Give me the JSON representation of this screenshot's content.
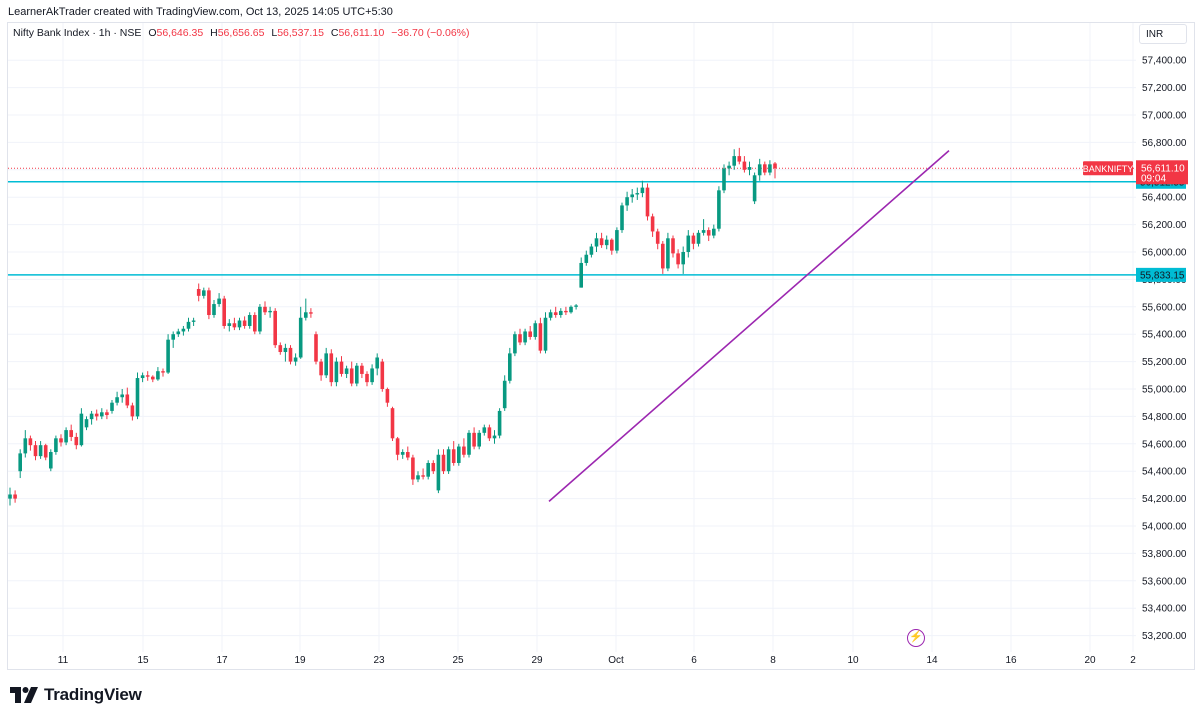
{
  "header": {
    "creator_text": "LearnerAkTrader created with TradingView.com, Oct 13, 2025 14:05 UTC+5:30"
  },
  "legend": {
    "symbol_text": "Nifty Bank Index · 1h · NSE",
    "open_label": "O",
    "open": "56,646.35",
    "high_label": "H",
    "high": "56,656.65",
    "low_label": "L",
    "low": "56,537.15",
    "close_label": "C",
    "close": "56,611.10",
    "change": "−36.70 (−0.06%)"
  },
  "currency": "INR",
  "footer": {
    "brand": "TradingView"
  },
  "colors": {
    "up": "#089981",
    "down": "#f23645",
    "hline": "#00bcd4",
    "trendline": "#9c27b0",
    "grid": "#f0f3fa",
    "axis_text": "#131722"
  },
  "chart_data": {
    "type": "candlestick",
    "title": "",
    "ylim": [
      53050,
      57550
    ],
    "y_ticks": [
      "57,400.00",
      "57,200.00",
      "57,000.00",
      "56,800.00",
      "56,600.00",
      "56,400.00",
      "56,200.00",
      "56,000.00",
      "55,800.00",
      "55,600.00",
      "55,400.00",
      "55,200.00",
      "55,000.00",
      "54,800.00",
      "54,600.00",
      "54,400.00",
      "54,200.00",
      "54,000.00",
      "53,800.00",
      "53,600.00",
      "53,400.00",
      "53,200.00"
    ],
    "x_ticks": [
      "11",
      "15",
      "17",
      "19",
      "23",
      "25",
      "29",
      "Oct",
      "6",
      "8",
      "10",
      "14",
      "16",
      "20",
      "2"
    ],
    "current_price": {
      "symbol": "BANKNIFTY",
      "price": "56,611.10",
      "countdown": "09:04",
      "value": 56611.1
    },
    "horizontal_lines": [
      {
        "value": 56512.55,
        "label": "56,512.55"
      },
      {
        "value": 55833.15,
        "label": "55,833.15"
      }
    ],
    "trendline": {
      "start": {
        "date": "Sep 30",
        "value": 54180
      },
      "end": {
        "date": "Oct 14",
        "value": 56740
      }
    },
    "candles": [
      {
        "o": 54200,
        "h": 54280,
        "l": 54150,
        "c": 54230
      },
      {
        "o": 54230,
        "h": 54260,
        "l": 54170,
        "c": 54200
      },
      {
        "o": 54400,
        "h": 54560,
        "l": 54350,
        "c": 54530
      },
      {
        "o": 54530,
        "h": 54700,
        "l": 54500,
        "c": 54640
      },
      {
        "o": 54640,
        "h": 54660,
        "l": 54550,
        "c": 54590
      },
      {
        "o": 54590,
        "h": 54620,
        "l": 54480,
        "c": 54510
      },
      {
        "o": 54510,
        "h": 54620,
        "l": 54490,
        "c": 54590
      },
      {
        "o": 54590,
        "h": 54600,
        "l": 54480,
        "c": 54500
      },
      {
        "o": 54420,
        "h": 54560,
        "l": 54400,
        "c": 54540
      },
      {
        "o": 54540,
        "h": 54660,
        "l": 54520,
        "c": 54640
      },
      {
        "o": 54640,
        "h": 54670,
        "l": 54580,
        "c": 54610
      },
      {
        "o": 54610,
        "h": 54720,
        "l": 54590,
        "c": 54700
      },
      {
        "o": 54700,
        "h": 54740,
        "l": 54620,
        "c": 54650
      },
      {
        "o": 54650,
        "h": 54680,
        "l": 54560,
        "c": 54590
      },
      {
        "o": 54590,
        "h": 54860,
        "l": 54580,
        "c": 54820
      },
      {
        "o": 54720,
        "h": 54800,
        "l": 54700,
        "c": 54780
      },
      {
        "o": 54780,
        "h": 54840,
        "l": 54740,
        "c": 54820
      },
      {
        "o": 54820,
        "h": 54850,
        "l": 54770,
        "c": 54800
      },
      {
        "o": 54800,
        "h": 54860,
        "l": 54780,
        "c": 54830
      },
      {
        "o": 54830,
        "h": 54850,
        "l": 54780,
        "c": 54810
      },
      {
        "o": 54840,
        "h": 54920,
        "l": 54820,
        "c": 54900
      },
      {
        "o": 54900,
        "h": 54980,
        "l": 54880,
        "c": 54940
      },
      {
        "o": 54940,
        "h": 55000,
        "l": 54900,
        "c": 54960
      },
      {
        "o": 54960,
        "h": 55010,
        "l": 54860,
        "c": 54880
      },
      {
        "o": 54880,
        "h": 54900,
        "l": 54770,
        "c": 54800
      },
      {
        "o": 54800,
        "h": 55120,
        "l": 54780,
        "c": 55080
      },
      {
        "o": 55080,
        "h": 55120,
        "l": 55050,
        "c": 55100
      },
      {
        "o": 55100,
        "h": 55130,
        "l": 55060,
        "c": 55090
      },
      {
        "o": 55090,
        "h": 55100,
        "l": 55050,
        "c": 55070
      },
      {
        "o": 55070,
        "h": 55160,
        "l": 55060,
        "c": 55130
      },
      {
        "o": 55130,
        "h": 55150,
        "l": 55090,
        "c": 55120
      },
      {
        "o": 55120,
        "h": 55400,
        "l": 55110,
        "c": 55360
      },
      {
        "o": 55360,
        "h": 55420,
        "l": 55300,
        "c": 55400
      },
      {
        "o": 55400,
        "h": 55440,
        "l": 55380,
        "c": 55420
      },
      {
        "o": 55420,
        "h": 55460,
        "l": 55390,
        "c": 55440
      },
      {
        "o": 55440,
        "h": 55520,
        "l": 55420,
        "c": 55490
      },
      {
        "o": 55490,
        "h": 55520,
        "l": 55460,
        "c": 55500
      },
      {
        "o": 55730,
        "h": 55770,
        "l": 55640,
        "c": 55680
      },
      {
        "o": 55680,
        "h": 55740,
        "l": 55660,
        "c": 55720
      },
      {
        "o": 55720,
        "h": 55740,
        "l": 55510,
        "c": 55540
      },
      {
        "o": 55540,
        "h": 55650,
        "l": 55520,
        "c": 55620
      },
      {
        "o": 55620,
        "h": 55700,
        "l": 55600,
        "c": 55660
      },
      {
        "o": 55660,
        "h": 55680,
        "l": 55440,
        "c": 55460
      },
      {
        "o": 55460,
        "h": 55510,
        "l": 55420,
        "c": 55480
      },
      {
        "o": 55480,
        "h": 55520,
        "l": 55430,
        "c": 55450
      },
      {
        "o": 55450,
        "h": 55520,
        "l": 55430,
        "c": 55500
      },
      {
        "o": 55500,
        "h": 55530,
        "l": 55440,
        "c": 55460
      },
      {
        "o": 55460,
        "h": 55560,
        "l": 55440,
        "c": 55540
      },
      {
        "o": 55540,
        "h": 55560,
        "l": 55400,
        "c": 55420
      },
      {
        "o": 55420,
        "h": 55620,
        "l": 55400,
        "c": 55600
      },
      {
        "o": 55600,
        "h": 55640,
        "l": 55540,
        "c": 55560
      },
      {
        "o": 55560,
        "h": 55600,
        "l": 55520,
        "c": 55570
      },
      {
        "o": 55570,
        "h": 55590,
        "l": 55300,
        "c": 55320
      },
      {
        "o": 55320,
        "h": 55340,
        "l": 55250,
        "c": 55270
      },
      {
        "o": 55270,
        "h": 55330,
        "l": 55200,
        "c": 55300
      },
      {
        "o": 55300,
        "h": 55320,
        "l": 55180,
        "c": 55200
      },
      {
        "o": 55200,
        "h": 55260,
        "l": 55170,
        "c": 55230
      },
      {
        "o": 55230,
        "h": 55600,
        "l": 55220,
        "c": 55520
      },
      {
        "o": 55520,
        "h": 55660,
        "l": 55500,
        "c": 55560
      },
      {
        "o": 55560,
        "h": 55590,
        "l": 55520,
        "c": 55550
      },
      {
        "o": 55400,
        "h": 55420,
        "l": 55180,
        "c": 55200
      },
      {
        "o": 55200,
        "h": 55220,
        "l": 55060,
        "c": 55100
      },
      {
        "o": 55100,
        "h": 55300,
        "l": 55080,
        "c": 55260
      },
      {
        "o": 55260,
        "h": 55290,
        "l": 55020,
        "c": 55050
      },
      {
        "o": 55050,
        "h": 55230,
        "l": 55020,
        "c": 55200
      },
      {
        "o": 55200,
        "h": 55240,
        "l": 55090,
        "c": 55110
      },
      {
        "o": 55110,
        "h": 55170,
        "l": 55080,
        "c": 55150
      },
      {
        "o": 55150,
        "h": 55200,
        "l": 55020,
        "c": 55040
      },
      {
        "o": 55040,
        "h": 55190,
        "l": 55020,
        "c": 55170
      },
      {
        "o": 55170,
        "h": 55190,
        "l": 55080,
        "c": 55110
      },
      {
        "o": 55110,
        "h": 55130,
        "l": 55020,
        "c": 55050
      },
      {
        "o": 55050,
        "h": 55180,
        "l": 55030,
        "c": 55150
      },
      {
        "o": 55150,
        "h": 55260,
        "l": 55100,
        "c": 55230
      },
      {
        "o": 55200,
        "h": 55220,
        "l": 54980,
        "c": 55000
      },
      {
        "o": 55000,
        "h": 55010,
        "l": 54870,
        "c": 54900
      },
      {
        "o": 54860,
        "h": 54870,
        "l": 54620,
        "c": 54640
      },
      {
        "o": 54640,
        "h": 54650,
        "l": 54480,
        "c": 54520
      },
      {
        "o": 54520,
        "h": 54560,
        "l": 54490,
        "c": 54540
      },
      {
        "o": 54540,
        "h": 54580,
        "l": 54480,
        "c": 54500
      },
      {
        "o": 54500,
        "h": 54520,
        "l": 54300,
        "c": 54340
      },
      {
        "o": 54340,
        "h": 54400,
        "l": 54320,
        "c": 54370
      },
      {
        "o": 54370,
        "h": 54420,
        "l": 54340,
        "c": 54360
      },
      {
        "o": 54360,
        "h": 54480,
        "l": 54340,
        "c": 54460
      },
      {
        "o": 54460,
        "h": 54480,
        "l": 54380,
        "c": 54400
      },
      {
        "o": 54260,
        "h": 54560,
        "l": 54240,
        "c": 54520
      },
      {
        "o": 54520,
        "h": 54560,
        "l": 54380,
        "c": 54400
      },
      {
        "o": 54400,
        "h": 54580,
        "l": 54380,
        "c": 54560
      },
      {
        "o": 54560,
        "h": 54620,
        "l": 54440,
        "c": 54460
      },
      {
        "o": 54460,
        "h": 54600,
        "l": 54440,
        "c": 54580
      },
      {
        "o": 54580,
        "h": 54640,
        "l": 54500,
        "c": 54520
      },
      {
        "o": 54520,
        "h": 54700,
        "l": 54500,
        "c": 54680
      },
      {
        "o": 54680,
        "h": 54720,
        "l": 54560,
        "c": 54580
      },
      {
        "o": 54580,
        "h": 54700,
        "l": 54560,
        "c": 54680
      },
      {
        "o": 54680,
        "h": 54740,
        "l": 54660,
        "c": 54720
      },
      {
        "o": 54720,
        "h": 54740,
        "l": 54620,
        "c": 54640
      },
      {
        "o": 54640,
        "h": 54700,
        "l": 54600,
        "c": 54660
      },
      {
        "o": 54660,
        "h": 54860,
        "l": 54640,
        "c": 54840
      },
      {
        "o": 54860,
        "h": 55100,
        "l": 54840,
        "c": 55060
      },
      {
        "o": 55060,
        "h": 55300,
        "l": 55040,
        "c": 55260
      },
      {
        "o": 55260,
        "h": 55420,
        "l": 55240,
        "c": 55400
      },
      {
        "o": 55400,
        "h": 55440,
        "l": 55320,
        "c": 55340
      },
      {
        "o": 55340,
        "h": 55440,
        "l": 55320,
        "c": 55420
      },
      {
        "o": 55420,
        "h": 55460,
        "l": 55360,
        "c": 55380
      },
      {
        "o": 55380,
        "h": 55500,
        "l": 55360,
        "c": 55480
      },
      {
        "o": 55480,
        "h": 55520,
        "l": 55260,
        "c": 55280
      },
      {
        "o": 55280,
        "h": 55560,
        "l": 55260,
        "c": 55520
      },
      {
        "o": 55520,
        "h": 55580,
        "l": 55500,
        "c": 55560
      },
      {
        "o": 55560,
        "h": 55600,
        "l": 55520,
        "c": 55540
      },
      {
        "o": 55540,
        "h": 55590,
        "l": 55520,
        "c": 55570
      },
      {
        "o": 55570,
        "h": 55600,
        "l": 55540,
        "c": 55560
      },
      {
        "o": 55560,
        "h": 55610,
        "l": 55550,
        "c": 55600
      },
      {
        "o": 55600,
        "h": 55620,
        "l": 55580,
        "c": 55610
      },
      {
        "o": 55740,
        "h": 55960,
        "l": 55740,
        "c": 55920
      },
      {
        "o": 55920,
        "h": 56010,
        "l": 55900,
        "c": 55980
      },
      {
        "o": 55980,
        "h": 56060,
        "l": 55960,
        "c": 56040
      },
      {
        "o": 56040,
        "h": 56140,
        "l": 56000,
        "c": 56100
      },
      {
        "o": 56100,
        "h": 56140,
        "l": 56030,
        "c": 56050
      },
      {
        "o": 56050,
        "h": 56120,
        "l": 56020,
        "c": 56090
      },
      {
        "o": 56090,
        "h": 56100,
        "l": 55980,
        "c": 56010
      },
      {
        "o": 56010,
        "h": 56180,
        "l": 55990,
        "c": 56160
      },
      {
        "o": 56160,
        "h": 56360,
        "l": 56140,
        "c": 56340
      },
      {
        "o": 56340,
        "h": 56440,
        "l": 56300,
        "c": 56400
      },
      {
        "o": 56400,
        "h": 56460,
        "l": 56360,
        "c": 56420
      },
      {
        "o": 56420,
        "h": 56470,
        "l": 56380,
        "c": 56430
      },
      {
        "o": 56430,
        "h": 56520,
        "l": 56400,
        "c": 56470
      },
      {
        "o": 56470,
        "h": 56500,
        "l": 56230,
        "c": 56260
      },
      {
        "o": 56260,
        "h": 56280,
        "l": 56110,
        "c": 56150
      },
      {
        "o": 56150,
        "h": 56170,
        "l": 56020,
        "c": 56060
      },
      {
        "o": 56060,
        "h": 56080,
        "l": 55840,
        "c": 55880
      },
      {
        "o": 55880,
        "h": 56140,
        "l": 55860,
        "c": 56100
      },
      {
        "o": 56100,
        "h": 56120,
        "l": 55960,
        "c": 55990
      },
      {
        "o": 55990,
        "h": 56020,
        "l": 55880,
        "c": 55910
      },
      {
        "o": 55910,
        "h": 56040,
        "l": 55840,
        "c": 56000
      },
      {
        "o": 56000,
        "h": 56160,
        "l": 55960,
        "c": 56120
      },
      {
        "o": 56120,
        "h": 56140,
        "l": 56020,
        "c": 56060
      },
      {
        "o": 56060,
        "h": 56160,
        "l": 56040,
        "c": 56140
      },
      {
        "o": 56140,
        "h": 56240,
        "l": 56120,
        "c": 56160
      },
      {
        "o": 56160,
        "h": 56180,
        "l": 56080,
        "c": 56120
      },
      {
        "o": 56120,
        "h": 56200,
        "l": 56100,
        "c": 56170
      },
      {
        "o": 56170,
        "h": 56480,
        "l": 56150,
        "c": 56450
      },
      {
        "o": 56450,
        "h": 56640,
        "l": 56430,
        "c": 56610
      },
      {
        "o": 56610,
        "h": 56660,
        "l": 56560,
        "c": 56630
      },
      {
        "o": 56630,
        "h": 56750,
        "l": 56600,
        "c": 56700
      },
      {
        "o": 56700,
        "h": 56760,
        "l": 56640,
        "c": 56660
      },
      {
        "o": 56660,
        "h": 56700,
        "l": 56580,
        "c": 56600
      },
      {
        "o": 56600,
        "h": 56660,
        "l": 56560,
        "c": 56620
      },
      {
        "o": 56370,
        "h": 56580,
        "l": 56350,
        "c": 56560
      },
      {
        "o": 56560,
        "h": 56680,
        "l": 56520,
        "c": 56640
      },
      {
        "o": 56640,
        "h": 56660,
        "l": 56560,
        "c": 56580
      },
      {
        "o": 56580,
        "h": 56670,
        "l": 56560,
        "c": 56640
      },
      {
        "o": 56646.35,
        "h": 56656.65,
        "l": 56537.15,
        "c": 56611.1
      }
    ]
  }
}
